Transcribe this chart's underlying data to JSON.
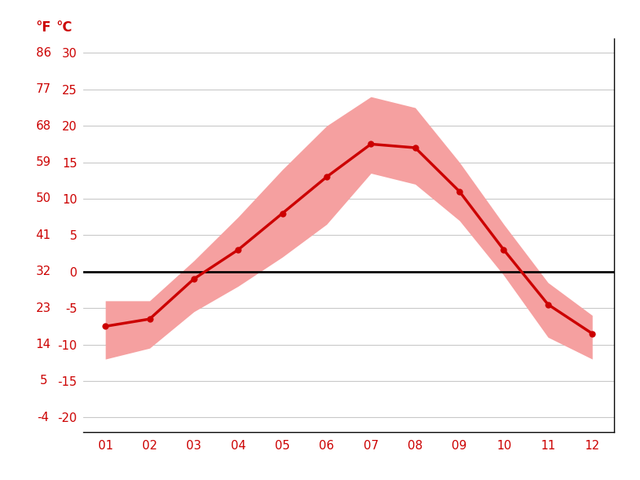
{
  "months": [
    1,
    2,
    3,
    4,
    5,
    6,
    7,
    8,
    9,
    10,
    11,
    12
  ],
  "month_labels": [
    "01",
    "02",
    "03",
    "04",
    "05",
    "06",
    "07",
    "08",
    "09",
    "10",
    "11",
    "12"
  ],
  "avg_temp_c": [
    -7.5,
    -6.5,
    -1.0,
    3.0,
    8.0,
    13.0,
    17.5,
    17.0,
    11.0,
    3.0,
    -4.5,
    -8.5
  ],
  "max_temp_c": [
    -4.0,
    -4.0,
    1.5,
    7.5,
    14.0,
    20.0,
    24.0,
    22.5,
    15.0,
    6.5,
    -1.5,
    -6.0
  ],
  "min_temp_c": [
    -12.0,
    -10.5,
    -5.5,
    -2.0,
    2.0,
    6.5,
    13.5,
    12.0,
    7.0,
    -0.5,
    -9.0,
    -12.0
  ],
  "line_color": "#cc0000",
  "band_color": "#f5a0a0",
  "zero_line_color": "#000000",
  "grid_color": "#c8c8c8",
  "axis_color": "#cc0000",
  "background_color": "#ffffff",
  "ylabel_F": "°F",
  "ylabel_C": "°C",
  "yticks_c": [
    -20,
    -15,
    -10,
    -5,
    0,
    5,
    10,
    15,
    20,
    25,
    30
  ],
  "yticks_f": [
    -4,
    5,
    14,
    23,
    32,
    41,
    50,
    59,
    68,
    77,
    86
  ],
  "ylim_c": [
    -22,
    32
  ],
  "xlim": [
    0.5,
    12.5
  ]
}
